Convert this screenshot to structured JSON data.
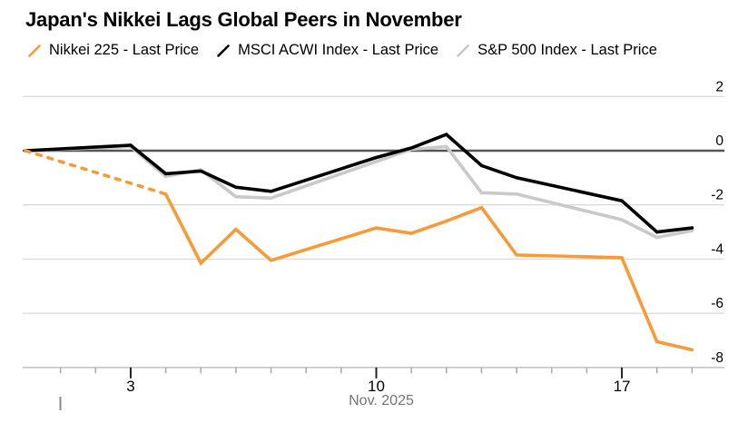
{
  "chart_data": {
    "type": "line",
    "title": "Japan's Nikkei Lags Global Peers in November",
    "subtitle": "",
    "legend_position": "top-left",
    "grid": true,
    "ylim": [
      -8.3,
      2.3
    ],
    "y_axis": {
      "side": "right",
      "tick_values": [
        2,
        0,
        -2,
        -4,
        -6,
        -8
      ],
      "zero_line_value": 0
    },
    "x_axis": {
      "month_label": "Nov. 2025",
      "labeled_days": [
        3,
        10,
        17
      ],
      "tick_day_range": [
        1,
        19
      ],
      "start_date": "Oct 31",
      "end_date": "Nov 19"
    },
    "dates": [
      "Oct 31",
      "Nov 3",
      "Nov 4",
      "Nov 5",
      "Nov 6",
      "Nov 7",
      "Nov 10",
      "Nov 11",
      "Nov 12",
      "Nov 13",
      "Nov 14",
      "Nov 17",
      "Nov 18",
      "Nov 19"
    ],
    "day_offsets": [
      0,
      3,
      4,
      5,
      6,
      7,
      10,
      11,
      12,
      13,
      14,
      17,
      18,
      19
    ],
    "series": [
      {
        "name": "Nikkei 225 - Last Price",
        "color": "#F79B39",
        "dashed_lead": true,
        "dashed_lead_note": "dashed interpolation Oct 31 to Nov 4 (no Nov 3 data)",
        "values": [
          0,
          null,
          -1.6,
          -4.15,
          -2.9,
          -4.05,
          -2.85,
          -3.05,
          -2.6,
          -2.1,
          -3.85,
          -3.95,
          -7.05,
          -7.35
        ]
      },
      {
        "name": "MSCI ACWI Index - Last Price",
        "color": "#000000",
        "dashed_lead": false,
        "values": [
          0,
          0.2,
          -0.85,
          -0.75,
          -1.35,
          -1.5,
          -0.25,
          0.1,
          0.6,
          -0.55,
          -1.0,
          -1.85,
          -3.0,
          -2.85
        ]
      },
      {
        "name": "S&P 500 Index - Last Price",
        "color": "#C9C9C9",
        "dashed_lead": false,
        "values": [
          0,
          0.15,
          -0.95,
          -0.7,
          -1.7,
          -1.75,
          -0.4,
          0.05,
          0.15,
          -1.55,
          -1.6,
          -2.55,
          -3.2,
          -2.95
        ]
      }
    ],
    "colors": {
      "zero_line": "#555555",
      "gridline": "#DBDBDB",
      "axis_line": "#C6C6C6",
      "minor_tick": "#ADADAD",
      "major_tick": "#222222",
      "axis_label": "#000000",
      "month_label": "#757575",
      "stray_mark": "#8A8A8A",
      "background": "#FFFFFF"
    }
  }
}
